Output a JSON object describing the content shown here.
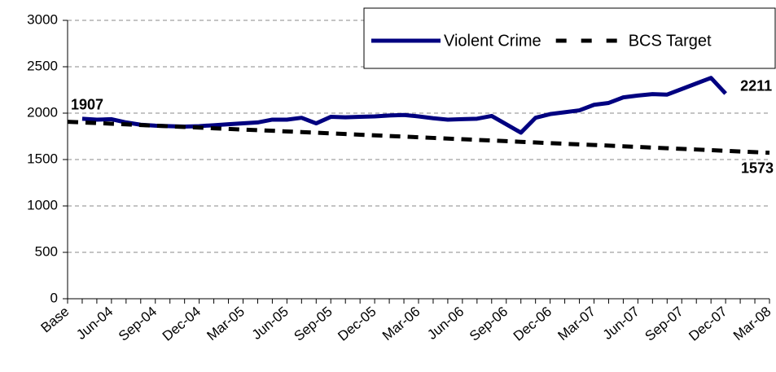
{
  "chart_data": {
    "type": "line",
    "categories": [
      "Base",
      null,
      null,
      "Jun-04",
      null,
      null,
      "Sep-04",
      null,
      null,
      "Dec-04",
      null,
      null,
      "Mar-05",
      null,
      null,
      "Jun-05",
      null,
      null,
      "Sep-05",
      null,
      null,
      "Dec-05",
      null,
      null,
      "Mar-06",
      null,
      null,
      "Jun-06",
      null,
      null,
      "Sep-06",
      null,
      null,
      "Dec-06",
      null,
      null,
      "Mar-07",
      null,
      null,
      "Jun-07",
      null,
      null,
      "Sep-07",
      null,
      null,
      "Dec-07",
      null,
      null,
      "Mar-08"
    ],
    "series": [
      {
        "name": "Violent Crime",
        "color": "#000080",
        "dashed": false,
        "values": [
          null,
          1940,
          1930,
          1935,
          1900,
          1875,
          1865,
          1860,
          1855,
          1860,
          1870,
          1880,
          1890,
          1900,
          1930,
          1930,
          1950,
          1890,
          1960,
          1955,
          1960,
          1965,
          1975,
          1980,
          1965,
          1945,
          1930,
          1935,
          1940,
          1970,
          1880,
          1790,
          1950,
          1990,
          2010,
          2030,
          2090,
          2110,
          2170,
          2190,
          2205,
          2200,
          2260,
          2320,
          2380,
          2211,
          null,
          null,
          null
        ],
        "labeled_points": [
          45
        ]
      },
      {
        "name": "BCS Target",
        "color": "#000000",
        "dashed": true,
        "values": [
          1907,
          1900,
          1893,
          1886,
          1879,
          1872,
          1865,
          1858,
          1851,
          1844,
          1837,
          1830,
          1823,
          1817,
          1810,
          1803,
          1796,
          1789,
          1782,
          1775,
          1768,
          1761,
          1754,
          1747,
          1740,
          1733,
          1726,
          1719,
          1712,
          1705,
          1698,
          1691,
          1684,
          1677,
          1670,
          1663,
          1657,
          1650,
          1643,
          1636,
          1629,
          1622,
          1615,
          1608,
          1601,
          1594,
          1587,
          1580,
          1573
        ],
        "labeled_points": [
          0,
          48
        ]
      }
    ],
    "ylim": [
      0,
      3000
    ],
    "yticks": [
      0,
      500,
      1000,
      1500,
      2000,
      2500,
      3000
    ],
    "grid": true,
    "legend": "upper right"
  }
}
